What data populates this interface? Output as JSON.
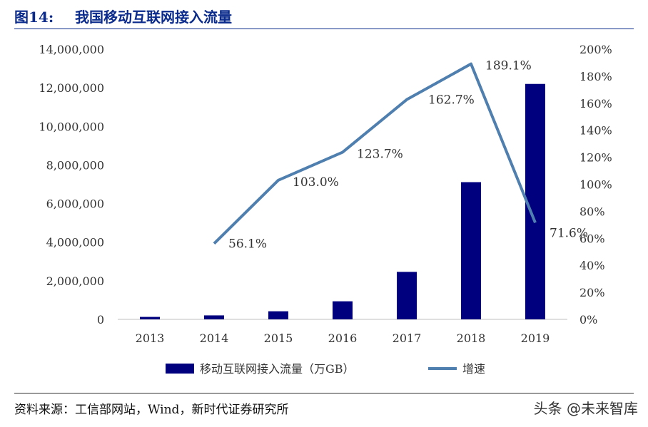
{
  "header": {
    "figure_no": "图14:",
    "title": "我国移动互联网接入流量"
  },
  "chart_data": {
    "type": "bar",
    "categories": [
      "2013",
      "2014",
      "2015",
      "2016",
      "2017",
      "2018",
      "2019"
    ],
    "series": [
      {
        "name": "移动互联网接入流量（万GB）",
        "kind": "bar",
        "axis": "left",
        "color": "#00007f",
        "values": [
          127000,
          206000,
          419000,
          936000,
          2460000,
          7110000,
          12200000
        ]
      },
      {
        "name": "增速",
        "kind": "line",
        "axis": "right",
        "color": "#4f7fae",
        "values": [
          null,
          56.1,
          103.0,
          123.7,
          162.7,
          189.1,
          71.6
        ],
        "labels": [
          "",
          "56.1%",
          "103.0%",
          "123.7%",
          "162.7%",
          "189.1%",
          "71.6%"
        ]
      }
    ],
    "y_left": {
      "range": [
        0,
        14000000
      ],
      "ticks": [
        "0",
        "2,000,000",
        "4,000,000",
        "6,000,000",
        "8,000,000",
        "10,000,000",
        "12,000,000",
        "14,000,000"
      ]
    },
    "y_right": {
      "range": [
        0,
        200
      ],
      "ticks": [
        "0%",
        "20%",
        "40%",
        "60%",
        "80%",
        "100%",
        "120%",
        "140%",
        "160%",
        "180%",
        "200%"
      ]
    },
    "grid": false,
    "legend": "bottom-center"
  },
  "footer": {
    "source": "资料来源：工信部网站，Wind，新时代证券研究所",
    "watermark": "头条 @未来智库"
  }
}
